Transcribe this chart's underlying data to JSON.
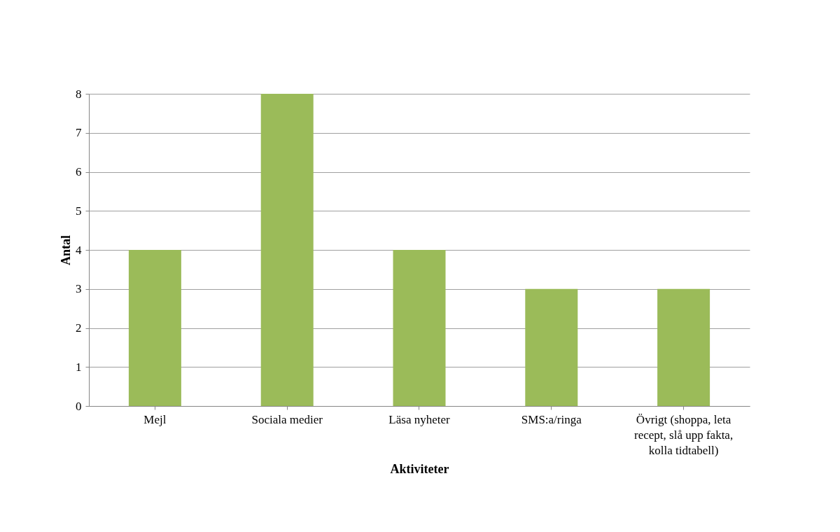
{
  "chart_data": {
    "type": "bar",
    "xlabel": "Aktiviteter",
    "ylabel": "Antal",
    "categories": [
      "Mejl",
      "Sociala medier",
      "Läsa nyheter",
      "SMS:a/ringa",
      "Övrigt (shoppa, leta recept, slå upp fakta, kolla tidtabell)"
    ],
    "values": [
      4,
      8,
      4,
      3,
      3
    ],
    "color": "#9bbb59",
    "ylim": [
      0,
      8
    ],
    "yticks": [
      0,
      1,
      2,
      3,
      4,
      5,
      6,
      7,
      8
    ],
    "grid": "y"
  }
}
